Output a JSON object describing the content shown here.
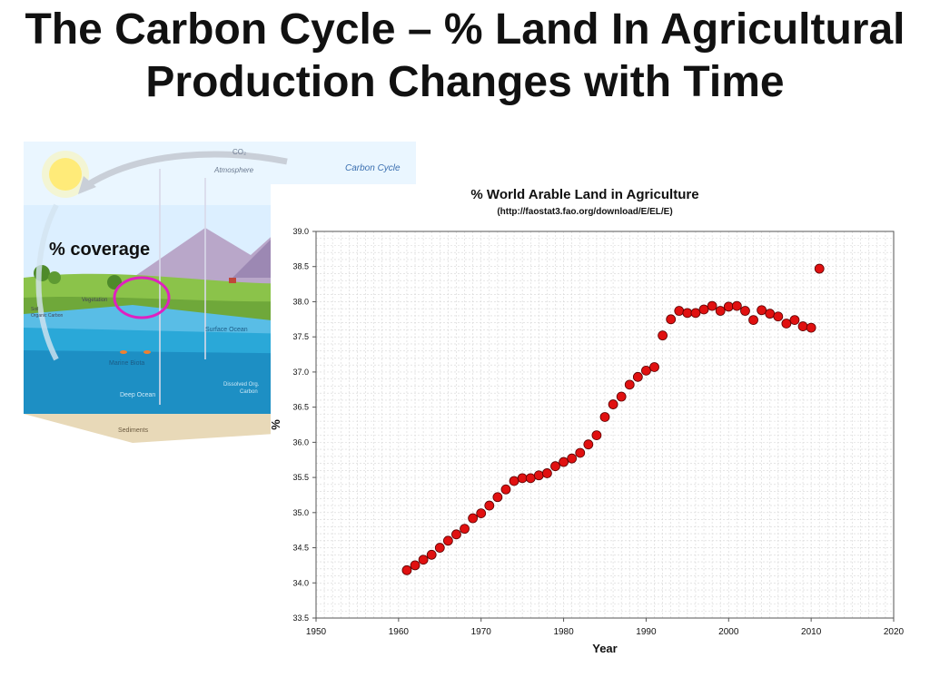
{
  "slide": {
    "title": "The Carbon Cycle – % Land In Agricultural Production Changes with Time"
  },
  "diagram": {
    "title": "Carbon Cycle",
    "labels": {
      "co2": "CO₂",
      "atmosphere": "Atmosphere",
      "vegetation": "Vegetation",
      "surface_ocean": "Surface Ocean",
      "marine_biota": "Marine Biota",
      "deep_ocean": "Deep Ocean",
      "dissolved_organic": "Dissolved Org.",
      "carbon": "Carbon",
      "sediments": "Sediments",
      "soil": "Soil",
      "organic_carbon": "Organic Carbon"
    },
    "annotation": "% coverage",
    "colors": {
      "sky": "#dcefff",
      "ocean": "#2aa8d8",
      "deep_ocean": "#1d8fc4",
      "land": "#8bc34a",
      "highlight": "#e020c0"
    }
  },
  "chart_data": {
    "type": "scatter",
    "title": "% World Arable Land in Agriculture",
    "subtitle": "(http://faostat3.fao.org/download/E/EL/E)",
    "xlabel": "Year",
    "ylabel": "%",
    "xlim": [
      1950,
      2020
    ],
    "ylim": [
      33.5,
      39.0
    ],
    "xticks": [
      1950,
      1960,
      1970,
      1980,
      1990,
      2000,
      2010,
      2020
    ],
    "yticks": [
      "33.5",
      "34.0",
      "34.5",
      "35.0",
      "35.5",
      "36.0",
      "36.5",
      "37.0",
      "37.5",
      "38.0",
      "38.5",
      "39.0"
    ],
    "grid": true,
    "marker_color": "#e01010",
    "x": [
      1961,
      1962,
      1963,
      1964,
      1965,
      1966,
      1967,
      1968,
      1969,
      1970,
      1971,
      1972,
      1973,
      1974,
      1975,
      1976,
      1977,
      1978,
      1979,
      1980,
      1981,
      1982,
      1983,
      1984,
      1985,
      1986,
      1987,
      1988,
      1989,
      1990,
      1991,
      1992,
      1993,
      1994,
      1995,
      1996,
      1997,
      1998,
      1999,
      2000,
      2001,
      2002,
      2003,
      2004,
      2005,
      2006,
      2007,
      2008,
      2009,
      2010,
      2011
    ],
    "y": [
      34.18,
      34.25,
      34.33,
      34.4,
      34.5,
      34.6,
      34.69,
      34.77,
      34.92,
      34.99,
      35.1,
      35.22,
      35.33,
      35.45,
      35.49,
      35.49,
      35.53,
      35.56,
      35.66,
      35.72,
      35.77,
      35.85,
      35.97,
      36.1,
      36.36,
      36.54,
      36.65,
      36.82,
      36.93,
      37.02,
      37.07,
      37.52,
      37.75,
      37.87,
      37.84,
      37.84,
      37.89,
      37.94,
      37.87,
      37.93,
      37.94,
      37.87,
      37.74,
      37.88,
      37.83,
      37.79,
      37.69,
      37.74,
      37.65,
      37.63,
      38.47
    ]
  }
}
